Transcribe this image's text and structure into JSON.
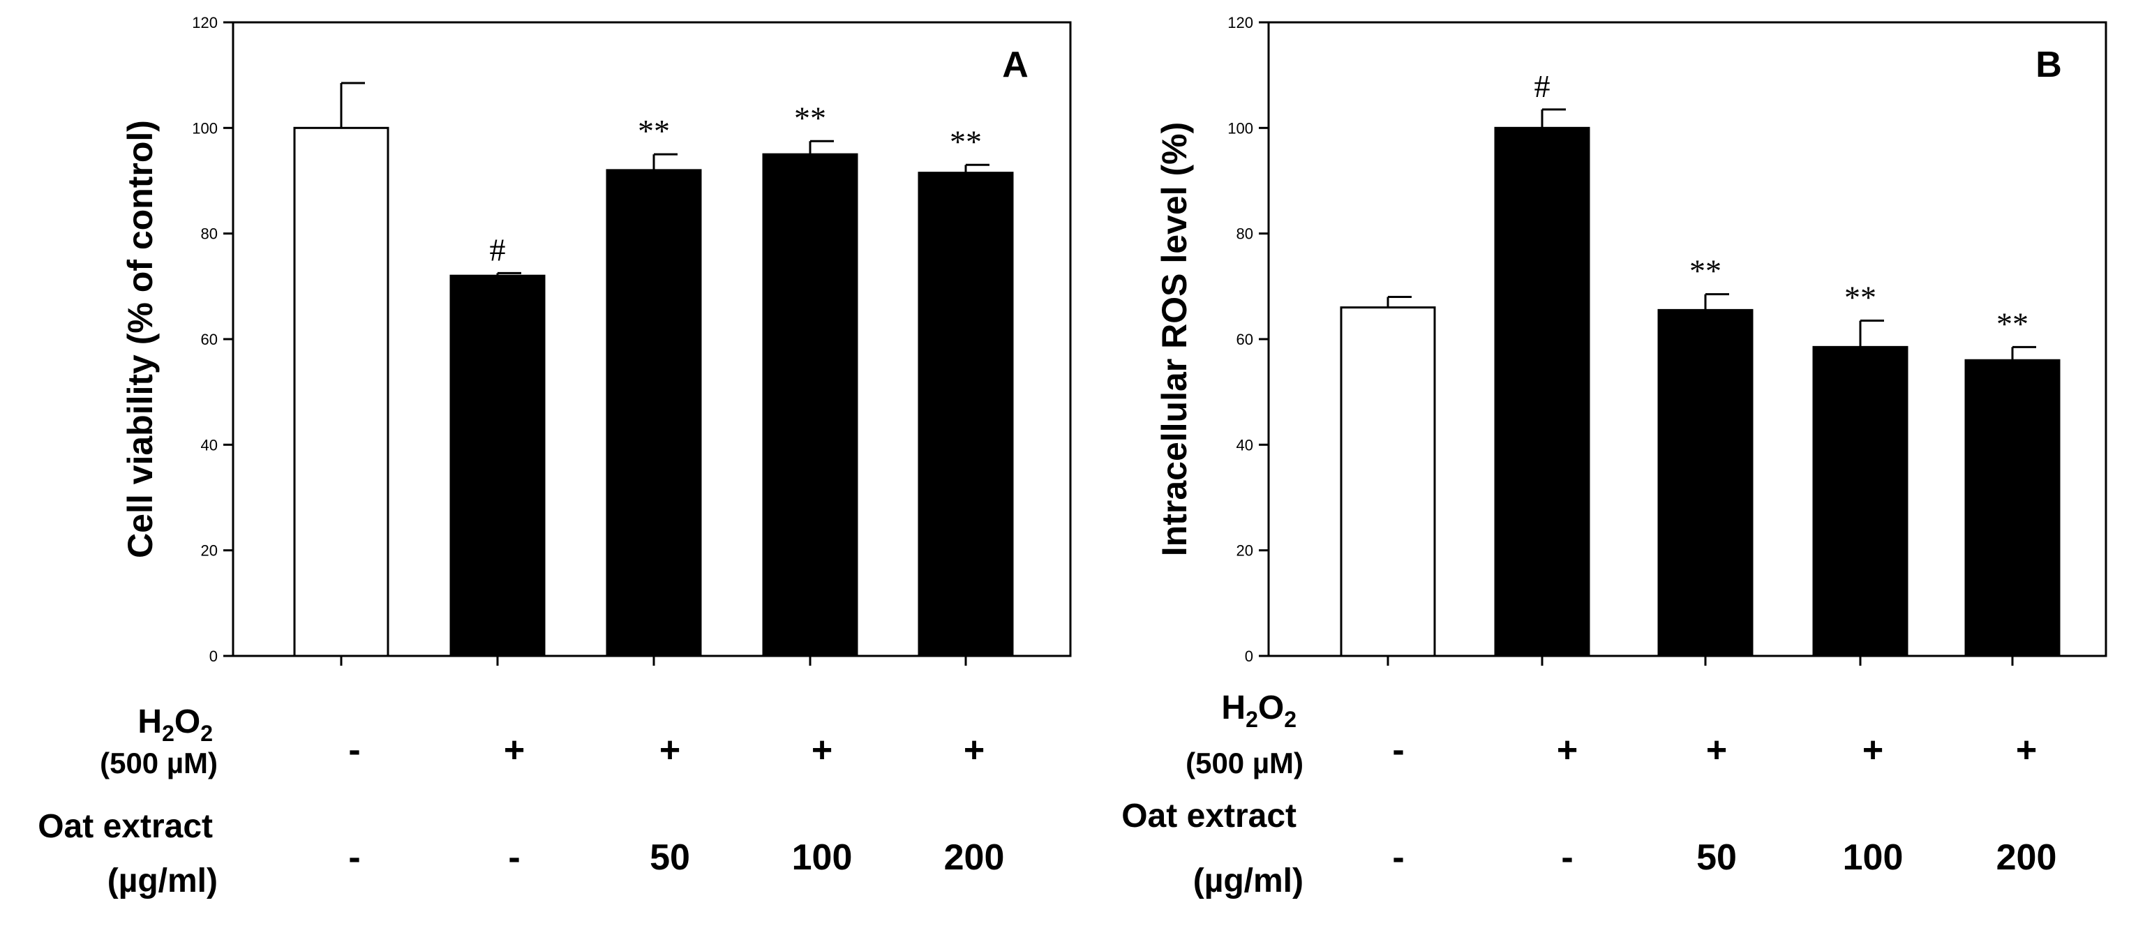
{
  "chart_data": [
    {
      "type": "bar",
      "panel": "A",
      "ylabel": "Cell viability (% of control)",
      "ylim": [
        0,
        120
      ],
      "yticks": [
        "0",
        "20",
        "40",
        "60",
        "80",
        "100",
        "120"
      ],
      "values": [
        100,
        72,
        92,
        95,
        91.5
      ],
      "errors": [
        8.5,
        0.5,
        3,
        2.5,
        1.5
      ],
      "annotations": [
        "",
        "#",
        "**",
        "**",
        "**"
      ],
      "bar_colors": [
        "#ffffff",
        "#000000",
        "#000000",
        "#000000",
        "#000000"
      ],
      "h2o2": {
        "label": "H",
        "sub1": "2",
        "mid": "O",
        "sub2": "2",
        "unit": "(500 µM)",
        "values": [
          "-",
          "+",
          "+",
          "+",
          "+"
        ]
      },
      "oat": {
        "label": "Oat extract",
        "unit": "(µg/ml)",
        "values": [
          "-",
          "-",
          "50",
          "100",
          "200"
        ]
      }
    },
    {
      "type": "bar",
      "panel": "B",
      "ylabel": "Intracellular ROS level (%)",
      "ylim": [
        0,
        120
      ],
      "yticks": [
        "0",
        "20",
        "40",
        "60",
        "80",
        "100",
        "120"
      ],
      "values": [
        66,
        100,
        65.5,
        58.5,
        56
      ],
      "errors": [
        2,
        3.5,
        3,
        5,
        2.5
      ],
      "annotations": [
        "",
        "#",
        "**",
        "**",
        "**"
      ],
      "bar_colors": [
        "#ffffff",
        "#000000",
        "#000000",
        "#000000",
        "#000000"
      ],
      "h2o2": {
        "label": "H",
        "sub1": "2",
        "mid": "O",
        "sub2": "2",
        "unit": "(500 µM)",
        "values": [
          "-",
          "+",
          "+",
          "+",
          "+"
        ]
      },
      "oat": {
        "label": "Oat extract",
        "unit": "(µg/ml)",
        "values": [
          "-",
          "-",
          "50",
          "100",
          "200"
        ]
      }
    }
  ]
}
